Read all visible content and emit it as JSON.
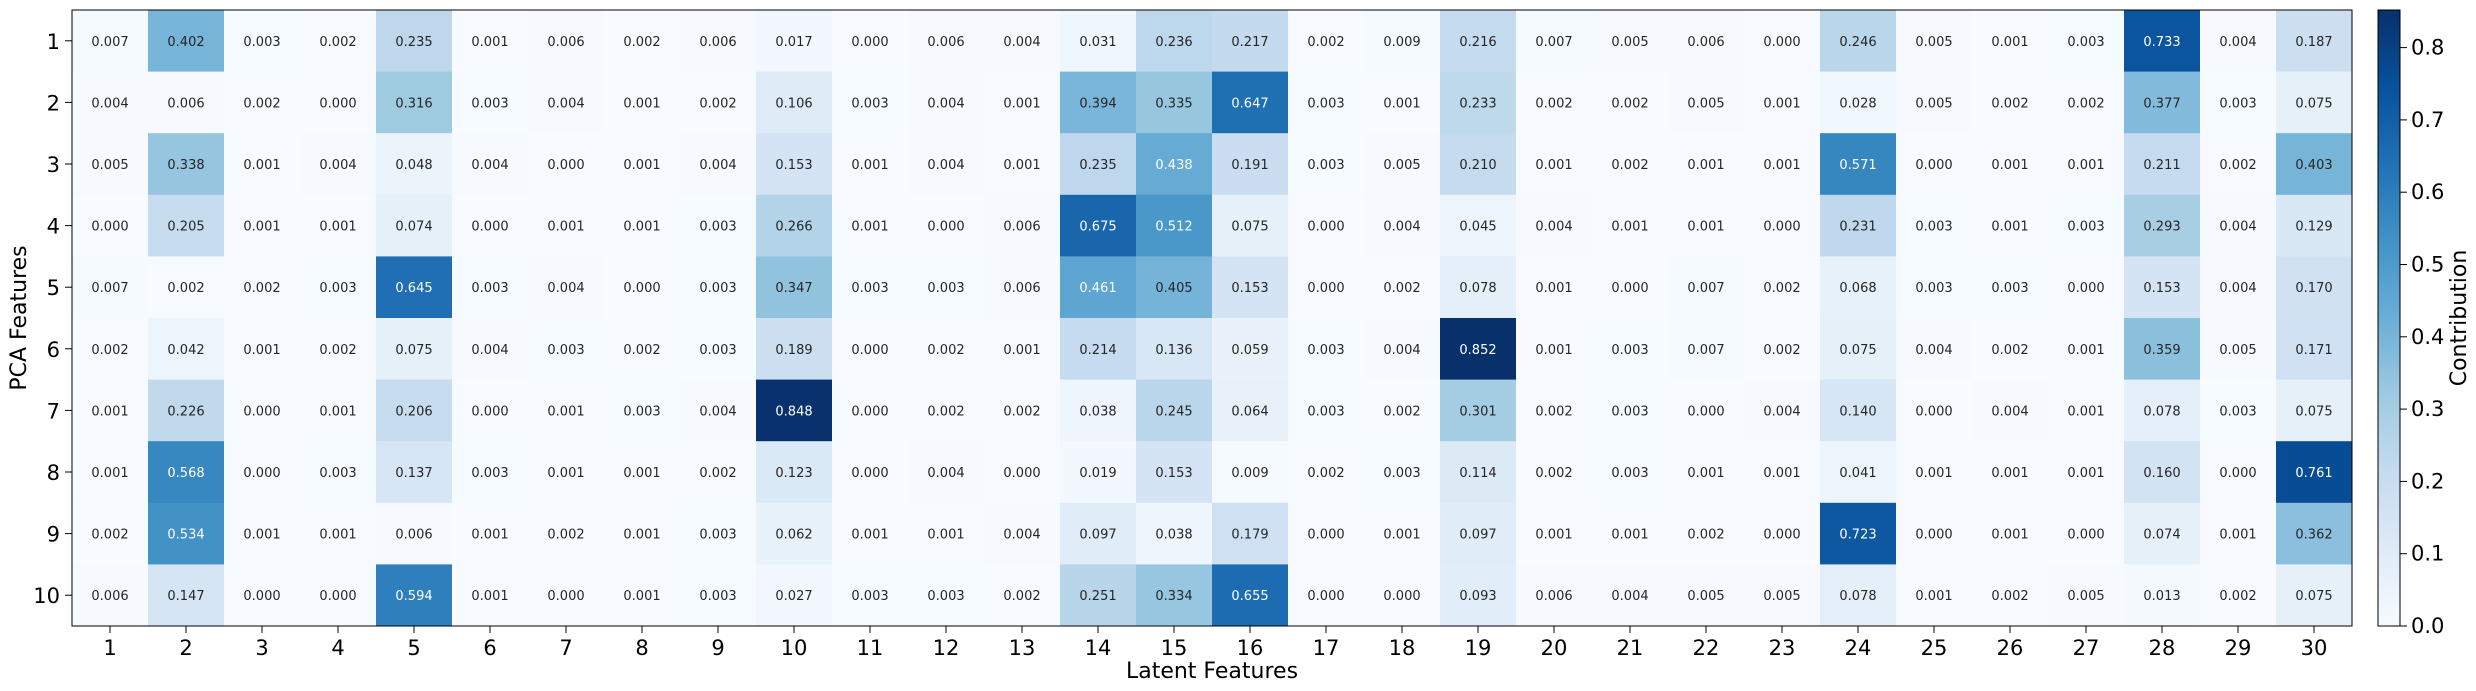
{
  "chart_data": {
    "type": "heatmap",
    "xlabel": "Latent Features",
    "ylabel": "PCA Features",
    "colorbar_label": "Contribution",
    "colorbar_ticks": [
      "0.0",
      "0.1",
      "0.2",
      "0.3",
      "0.4",
      "0.5",
      "0.6",
      "0.7",
      "0.8"
    ],
    "vmin": 0.0,
    "vmax": 0.852,
    "colormap": "Blues",
    "x_categories": [
      "1",
      "2",
      "3",
      "4",
      "5",
      "6",
      "7",
      "8",
      "9",
      "10",
      "11",
      "12",
      "13",
      "14",
      "15",
      "16",
      "17",
      "18",
      "19",
      "20",
      "21",
      "22",
      "23",
      "24",
      "25",
      "26",
      "27",
      "28",
      "29",
      "30"
    ],
    "y_categories": [
      "1",
      "2",
      "3",
      "4",
      "5",
      "6",
      "7",
      "8",
      "9",
      "10"
    ],
    "values": [
      [
        "0.007",
        "0.402",
        "0.003",
        "0.002",
        "0.235",
        "0.001",
        "0.006",
        "0.002",
        "0.006",
        "0.017",
        "0.000",
        "0.006",
        "0.004",
        "0.031",
        "0.236",
        "0.217",
        "0.002",
        "0.009",
        "0.216",
        "0.007",
        "0.005",
        "0.006",
        "0.000",
        "0.246",
        "0.005",
        "0.001",
        "0.003",
        "0.733",
        "0.004",
        "0.187"
      ],
      [
        "0.004",
        "0.006",
        "0.002",
        "0.000",
        "0.316",
        "0.003",
        "0.004",
        "0.001",
        "0.002",
        "0.106",
        "0.003",
        "0.004",
        "0.001",
        "0.394",
        "0.335",
        "0.647",
        "0.003",
        "0.001",
        "0.233",
        "0.002",
        "0.002",
        "0.005",
        "0.001",
        "0.028",
        "0.005",
        "0.002",
        "0.002",
        "0.377",
        "0.003",
        "0.075"
      ],
      [
        "0.005",
        "0.338",
        "0.001",
        "0.004",
        "0.048",
        "0.004",
        "0.000",
        "0.001",
        "0.004",
        "0.153",
        "0.001",
        "0.004",
        "0.001",
        "0.235",
        "0.438",
        "0.191",
        "0.003",
        "0.005",
        "0.210",
        "0.001",
        "0.002",
        "0.001",
        "0.001",
        "0.571",
        "0.000",
        "0.001",
        "0.001",
        "0.211",
        "0.002",
        "0.403"
      ],
      [
        "0.000",
        "0.205",
        "0.001",
        "0.001",
        "0.074",
        "0.000",
        "0.001",
        "0.001",
        "0.003",
        "0.266",
        "0.001",
        "0.000",
        "0.006",
        "0.675",
        "0.512",
        "0.075",
        "0.000",
        "0.004",
        "0.045",
        "0.004",
        "0.001",
        "0.001",
        "0.000",
        "0.231",
        "0.003",
        "0.001",
        "0.003",
        "0.293",
        "0.004",
        "0.129"
      ],
      [
        "0.007",
        "0.002",
        "0.002",
        "0.003",
        "0.645",
        "0.003",
        "0.004",
        "0.000",
        "0.003",
        "0.347",
        "0.003",
        "0.003",
        "0.006",
        "0.461",
        "0.405",
        "0.153",
        "0.000",
        "0.002",
        "0.078",
        "0.001",
        "0.000",
        "0.007",
        "0.002",
        "0.068",
        "0.003",
        "0.003",
        "0.000",
        "0.153",
        "0.004",
        "0.170"
      ],
      [
        "0.002",
        "0.042",
        "0.001",
        "0.002",
        "0.075",
        "0.004",
        "0.003",
        "0.002",
        "0.003",
        "0.189",
        "0.000",
        "0.002",
        "0.001",
        "0.214",
        "0.136",
        "0.059",
        "0.003",
        "0.004",
        "0.852",
        "0.001",
        "0.003",
        "0.007",
        "0.002",
        "0.075",
        "0.004",
        "0.002",
        "0.001",
        "0.359",
        "0.005",
        "0.171"
      ],
      [
        "0.001",
        "0.226",
        "0.000",
        "0.001",
        "0.206",
        "0.000",
        "0.001",
        "0.003",
        "0.004",
        "0.848",
        "0.000",
        "0.002",
        "0.002",
        "0.038",
        "0.245",
        "0.064",
        "0.003",
        "0.002",
        "0.301",
        "0.002",
        "0.003",
        "0.000",
        "0.004",
        "0.140",
        "0.000",
        "0.004",
        "0.001",
        "0.078",
        "0.003",
        "0.075"
      ],
      [
        "0.001",
        "0.568",
        "0.000",
        "0.003",
        "0.137",
        "0.003",
        "0.001",
        "0.001",
        "0.002",
        "0.123",
        "0.000",
        "0.004",
        "0.000",
        "0.019",
        "0.153",
        "0.009",
        "0.002",
        "0.003",
        "0.114",
        "0.002",
        "0.003",
        "0.001",
        "0.001",
        "0.041",
        "0.001",
        "0.001",
        "0.001",
        "0.160",
        "0.000",
        "0.761"
      ],
      [
        "0.002",
        "0.534",
        "0.001",
        "0.001",
        "0.006",
        "0.001",
        "0.002",
        "0.001",
        "0.003",
        "0.062",
        "0.001",
        "0.001",
        "0.004",
        "0.097",
        "0.038",
        "0.179",
        "0.000",
        "0.001",
        "0.097",
        "0.001",
        "0.001",
        "0.002",
        "0.000",
        "0.723",
        "0.000",
        "0.001",
        "0.000",
        "0.074",
        "0.001",
        "0.362"
      ],
      [
        "0.006",
        "0.147",
        "0.000",
        "0.000",
        "0.594",
        "0.001",
        "0.000",
        "0.001",
        "0.003",
        "0.027",
        "0.003",
        "0.003",
        "0.002",
        "0.251",
        "0.334",
        "0.655",
        "0.000",
        "0.000",
        "0.093",
        "0.006",
        "0.004",
        "0.005",
        "0.005",
        "0.078",
        "0.001",
        "0.002",
        "0.005",
        "0.013",
        "0.002",
        "0.075"
      ]
    ]
  }
}
